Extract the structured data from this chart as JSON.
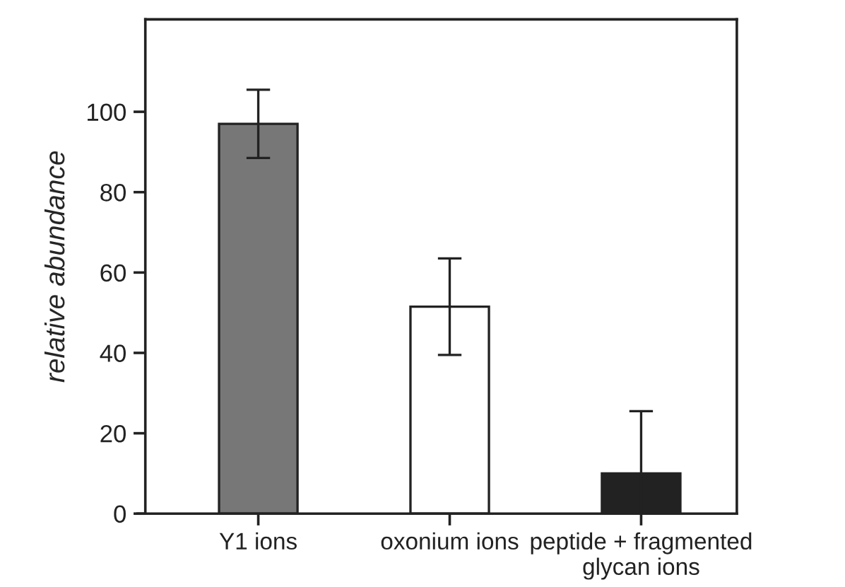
{
  "chart_data": {
    "type": "bar",
    "ylabel": "relative abundance",
    "categories": [
      "Y1 ions",
      "oxonium ions",
      "peptide + fragmented\nglycan ions"
    ],
    "values": [
      97,
      51.5,
      10
    ],
    "colors": [
      "#777777",
      "#ffffff",
      "#222222"
    ],
    "errors": [
      [
        88.5,
        105.5
      ],
      [
        39.5,
        63.5
      ],
      [
        0,
        25.5
      ]
    ],
    "ylim": [
      0,
      123
    ],
    "yticks": [
      0,
      20,
      40,
      60,
      80,
      100
    ],
    "grid": false,
    "legend": false
  }
}
